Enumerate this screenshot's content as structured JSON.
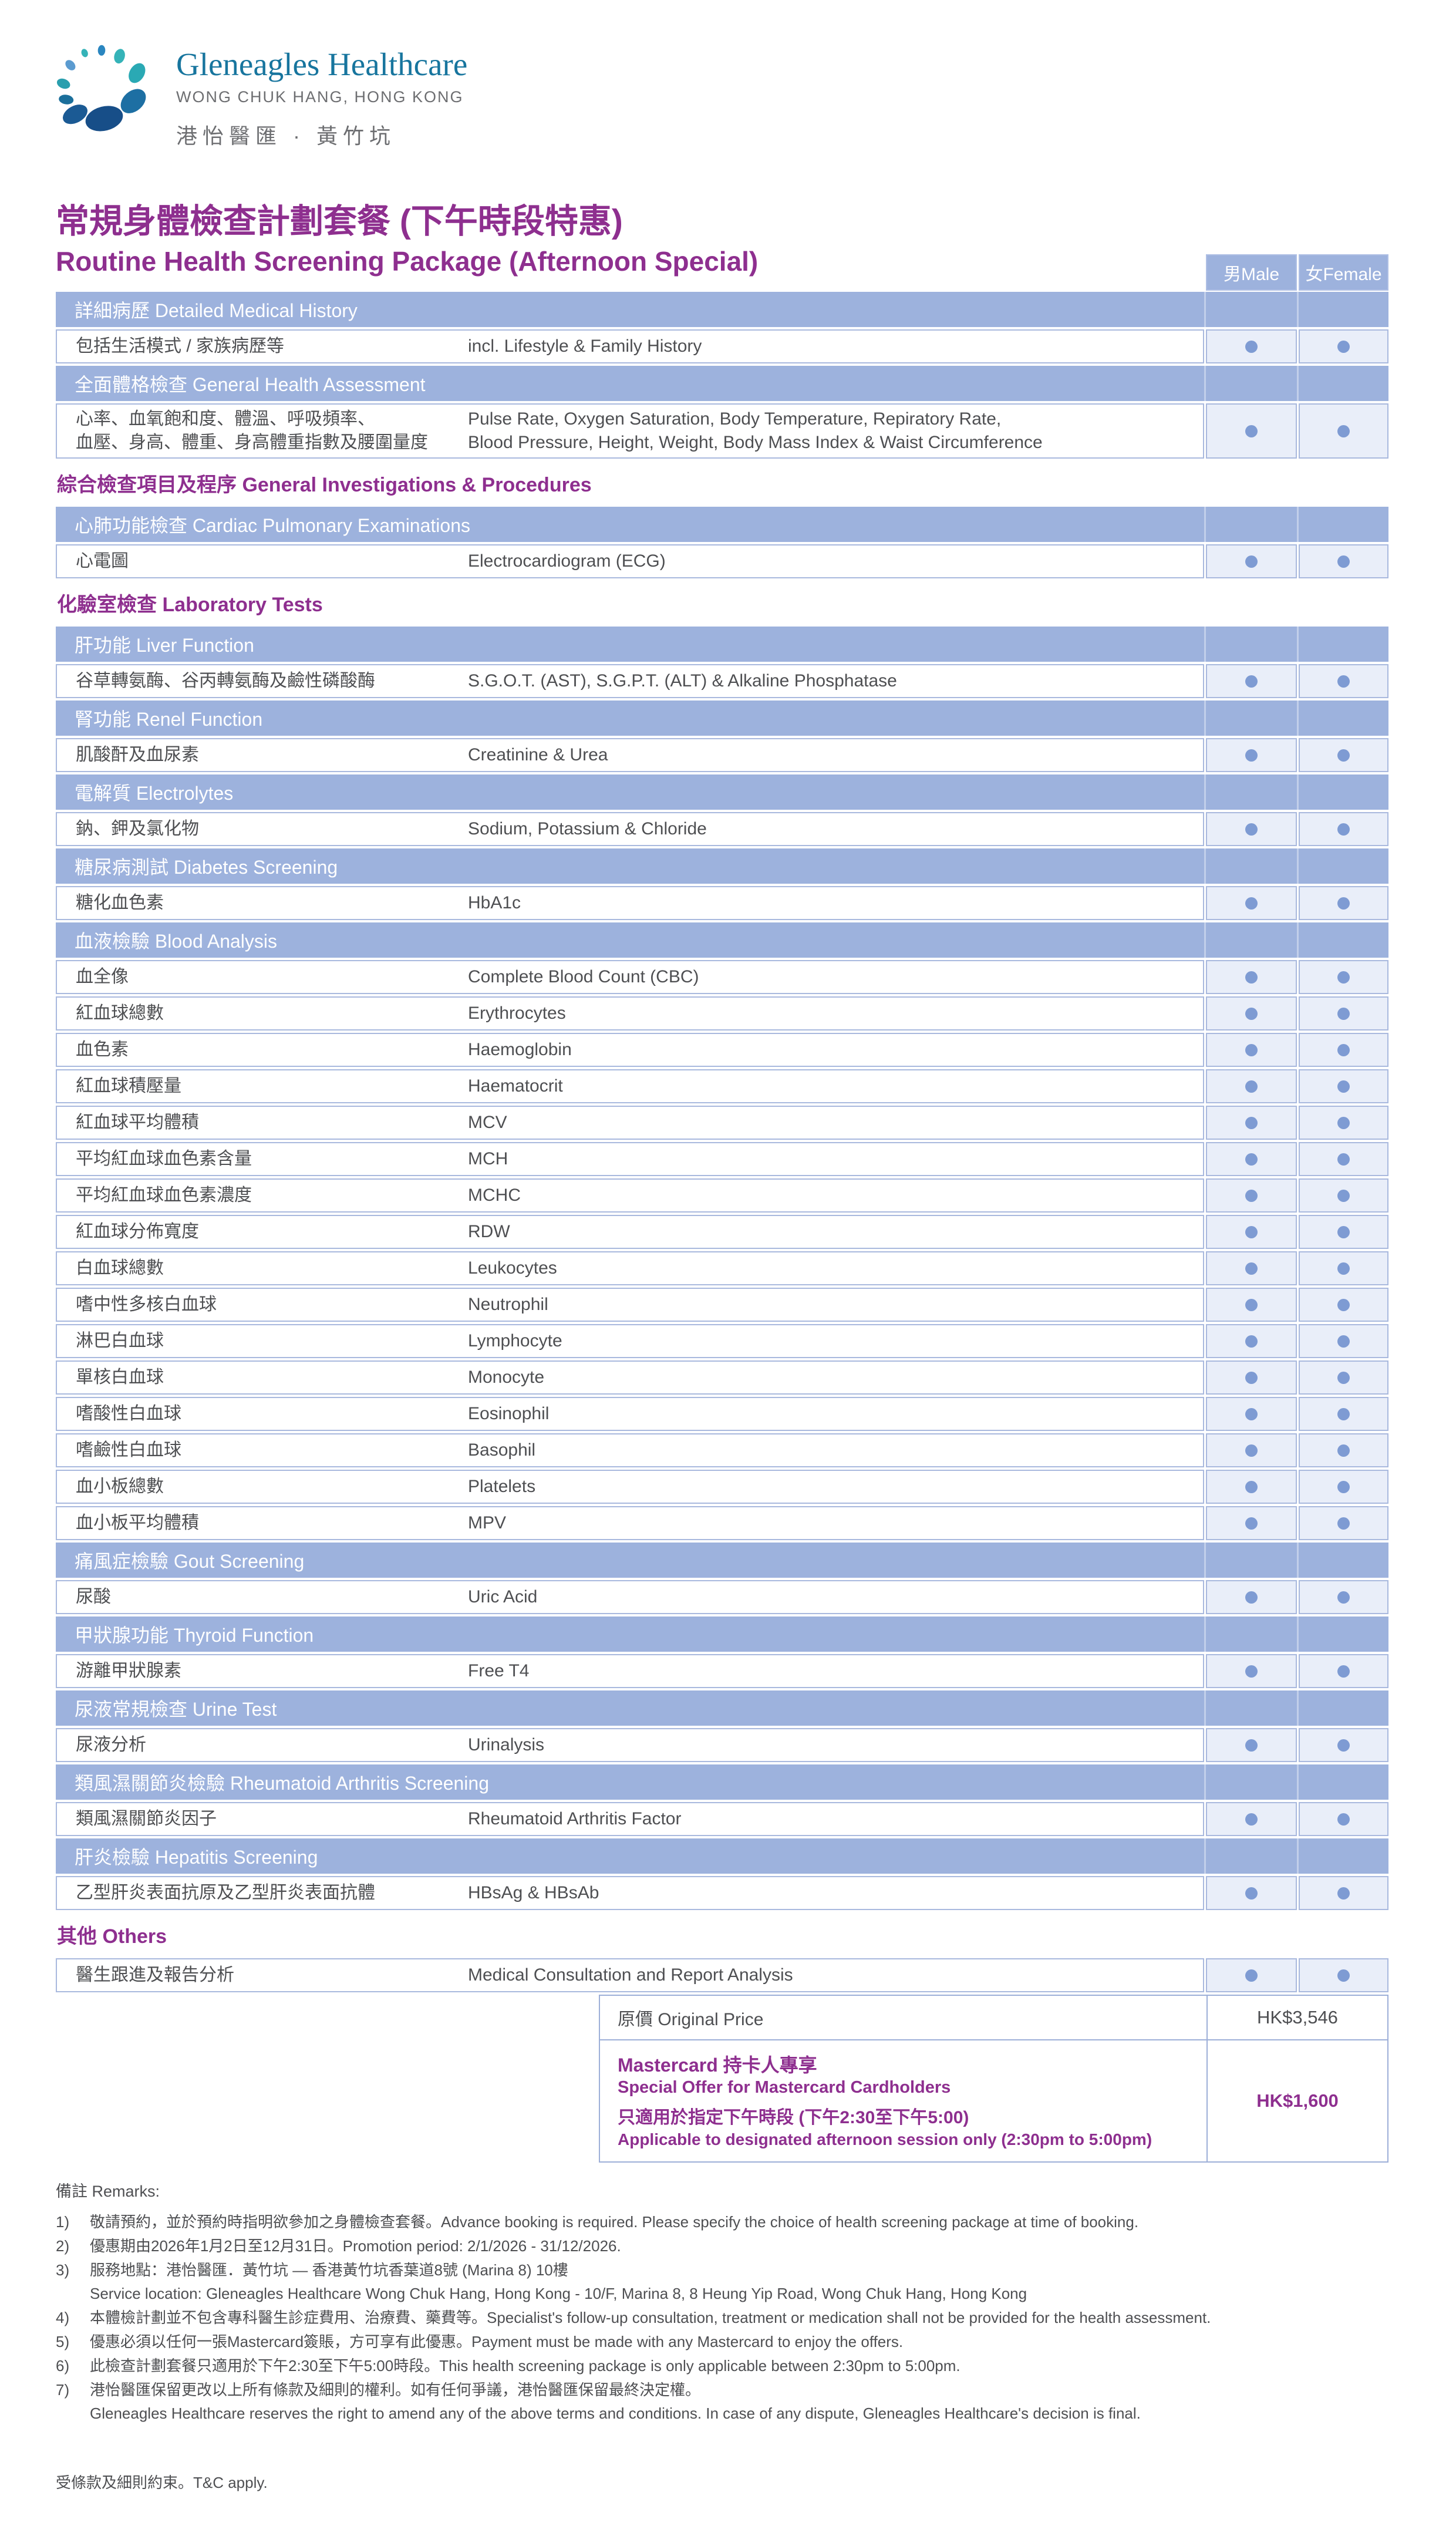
{
  "brand": {
    "name": "Gleneagles Healthcare",
    "location": "WONG CHUK HANG, HONG KONG",
    "chinese": "港怡醫匯 · 黃竹坑"
  },
  "title": {
    "zh": "常規身體檢查計劃套餐 (下午時段特惠)",
    "en": "Routine Health Screening Package (Afternoon Special)"
  },
  "table": {
    "col_male": "男Male",
    "col_female": "女Female",
    "rows": [
      {
        "kind": "section",
        "zh": "詳細病歷",
        "en": "Detailed Medical History"
      },
      {
        "kind": "item",
        "zh": "包括生活模式 / 家族病歷等",
        "en": "incl. Lifestyle & Family History",
        "male": true,
        "female": true
      },
      {
        "kind": "section",
        "zh": "全面體格檢查",
        "en": "General Health Assessment"
      },
      {
        "kind": "item",
        "tall": true,
        "zh_lines": [
          "心率、血氧飽和度、體溫、呼吸頻率、",
          "血壓、身高、體重、身高體重指數及腰圍量度"
        ],
        "en_lines": [
          "Pulse Rate, Oxygen Saturation, Body Temperature, Repiratory Rate,",
          "Blood Pressure, Height, Weight, Body Mass Index & Waist Circumference"
        ],
        "male": true,
        "female": true
      },
      {
        "kind": "heading",
        "zh": "綜合檢查項目及程序",
        "en": "General Investigations & Procedures"
      },
      {
        "kind": "section",
        "zh": "心肺功能檢查",
        "en": "Cardiac Pulmonary Examinations"
      },
      {
        "kind": "item",
        "zh": "心電圖",
        "en": "Electrocardiogram (ECG)",
        "male": true,
        "female": true
      },
      {
        "kind": "heading",
        "zh": "化驗室檢查",
        "en": "Laboratory Tests"
      },
      {
        "kind": "section",
        "zh": "肝功能",
        "en": "Liver Function"
      },
      {
        "kind": "item",
        "zh": "谷草轉氨酶、谷丙轉氨酶及鹼性磷酸酶",
        "en": "S.G.O.T. (AST), S.G.P.T. (ALT) & Alkaline Phosphatase",
        "male": true,
        "female": true
      },
      {
        "kind": "section",
        "zh": "腎功能",
        "en": "Renel Function"
      },
      {
        "kind": "item",
        "zh": "肌酸酐及血尿素",
        "en": "Creatinine & Urea",
        "male": true,
        "female": true
      },
      {
        "kind": "section",
        "zh": "電解質",
        "en": "Electrolytes"
      },
      {
        "kind": "item",
        "zh": "鈉、鉀及氯化物",
        "en": "Sodium, Potassium & Chloride",
        "male": true,
        "female": true
      },
      {
        "kind": "section",
        "zh": "糖尿病測試",
        "en": "Diabetes Screening"
      },
      {
        "kind": "item",
        "zh": "糖化血色素",
        "en": "HbA1c",
        "male": true,
        "female": true
      },
      {
        "kind": "section",
        "zh": "血液檢驗",
        "en": "Blood Analysis"
      },
      {
        "kind": "item",
        "zh": "血全像",
        "en": "Complete Blood Count (CBC)",
        "male": true,
        "female": true
      },
      {
        "kind": "item",
        "zh": "紅血球總數",
        "en": "Erythrocytes",
        "male": true,
        "female": true
      },
      {
        "kind": "item",
        "zh": "血色素",
        "en": "Haemoglobin",
        "male": true,
        "female": true
      },
      {
        "kind": "item",
        "zh": "紅血球積壓量",
        "en": "Haematocrit",
        "male": true,
        "female": true
      },
      {
        "kind": "item",
        "zh": "紅血球平均體積",
        "en": "MCV",
        "male": true,
        "female": true
      },
      {
        "kind": "item",
        "zh": "平均紅血球血色素含量",
        "en": "MCH",
        "male": true,
        "female": true
      },
      {
        "kind": "item",
        "zh": "平均紅血球血色素濃度",
        "en": "MCHC",
        "male": true,
        "female": true
      },
      {
        "kind": "item",
        "zh": "紅血球分佈寬度",
        "en": "RDW",
        "male": true,
        "female": true
      },
      {
        "kind": "item",
        "zh": "白血球總數",
        "en": "Leukocytes",
        "male": true,
        "female": true
      },
      {
        "kind": "item",
        "zh": "嗜中性多核白血球",
        "en": "Neutrophil",
        "male": true,
        "female": true
      },
      {
        "kind": "item",
        "zh": "淋巴白血球",
        "en": "Lymphocyte",
        "male": true,
        "female": true
      },
      {
        "kind": "item",
        "zh": "單核白血球",
        "en": "Monocyte",
        "male": true,
        "female": true
      },
      {
        "kind": "item",
        "zh": "嗜酸性白血球",
        "en": "Eosinophil",
        "male": true,
        "female": true
      },
      {
        "kind": "item",
        "zh": "嗜鹼性白血球",
        "en": "Basophil",
        "male": true,
        "female": true
      },
      {
        "kind": "item",
        "zh": "血小板總數",
        "en": "Platelets",
        "male": true,
        "female": true
      },
      {
        "kind": "item",
        "zh": "血小板平均體積",
        "en": "MPV",
        "male": true,
        "female": true
      },
      {
        "kind": "section",
        "zh": "痛風症檢驗",
        "en": "Gout Screening"
      },
      {
        "kind": "item",
        "zh": "尿酸",
        "en": "Uric Acid",
        "male": true,
        "female": true
      },
      {
        "kind": "section",
        "zh": "甲狀腺功能",
        "en": "Thyroid Function"
      },
      {
        "kind": "item",
        "zh": "游離甲狀腺素",
        "en": "Free T4",
        "male": true,
        "female": true
      },
      {
        "kind": "section",
        "zh": "尿液常規檢查",
        "en": "Urine Test"
      },
      {
        "kind": "item",
        "zh": "尿液分析",
        "en": "Urinalysis",
        "male": true,
        "female": true
      },
      {
        "kind": "section",
        "zh": "類風濕關節炎檢驗",
        "en": "Rheumatoid Arthritis Screening"
      },
      {
        "kind": "item",
        "zh": "類風濕關節炎因子",
        "en": "Rheumatoid Arthritis Factor",
        "male": true,
        "female": true
      },
      {
        "kind": "section",
        "zh": "肝炎檢驗",
        "en": "Hepatitis Screening"
      },
      {
        "kind": "item",
        "zh": "乙型肝炎表面抗原及乙型肝炎表面抗體",
        "en": "HBsAg & HBsAb",
        "male": true,
        "female": true
      },
      {
        "kind": "heading",
        "zh": "其他",
        "en": "Others"
      },
      {
        "kind": "item",
        "zh": "醫生跟進及報告分析",
        "en": "Medical Consultation and Report Analysis",
        "male": true,
        "female": true
      }
    ]
  },
  "price": {
    "original_label": "原價 Original Price",
    "original_value": "HK$3,546",
    "offer_title_zh": "Mastercard 持卡人專享",
    "offer_title_en": "Special Offer for Mastercard Cardholders",
    "offer_cond_zh": "只適用於指定下午時段 (下午2:30至下午5:00)",
    "offer_cond_en": "Applicable to designated afternoon session only (2:30pm to 5:00pm)",
    "offer_value": "HK$1,600"
  },
  "remarks": {
    "title": "備註 Remarks:",
    "items": [
      {
        "num": "1)",
        "lines": [
          "敬請預約，並於預約時指明欲參加之身體檢查套餐。Advance booking is required. Please specify the choice of health screening package at time of booking."
        ]
      },
      {
        "num": "2)",
        "lines": [
          "優惠期由2026年1月2日至12月31日。Promotion period: 2/1/2026 - 31/12/2026."
        ]
      },
      {
        "num": "3)",
        "lines": [
          "服務地點：港怡醫匯．黃竹坑 — 香港黃竹坑香葉道8號 (Marina 8) 10樓",
          "Service location: Gleneagles Healthcare Wong Chuk Hang, Hong Kong - 10/F, Marina 8, 8 Heung Yip Road, Wong Chuk Hang, Hong Kong"
        ]
      },
      {
        "num": "4)",
        "lines": [
          "本體檢計劃並不包含專科醫生診症費用、治療費、藥費等。Specialist's follow-up consultation, treatment or medication shall not be provided for the health assessment."
        ]
      },
      {
        "num": "5)",
        "lines": [
          "優惠必須以任何一張Mastercard簽賬，方可享有此優惠。Payment must be made with any Mastercard to enjoy the offers."
        ]
      },
      {
        "num": "6)",
        "lines": [
          "此檢查計劃套餐只適用於下午2:30至下午5:00時段。This health screening package is only applicable between 2:30pm to 5:00pm."
        ]
      },
      {
        "num": "7)",
        "lines": [
          "港怡醫匯保留更改以上所有條款及細則的權利。如有任何爭議，港怡醫匯保留最終決定權。",
          "Gleneagles Healthcare reserves the right to amend any of the above terms and conditions. In case of any dispute, Gleneagles Healthcare's decision is final."
        ]
      }
    ],
    "footer": "受條款及細則約束。T&C apply."
  }
}
